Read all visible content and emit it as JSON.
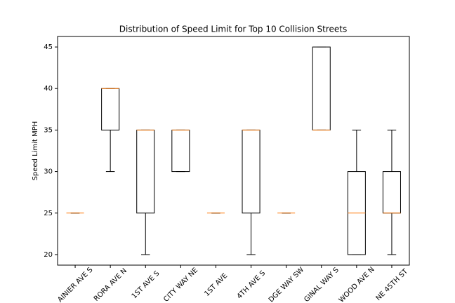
{
  "chart_data": {
    "type": "box",
    "title": "Distribution of Speed Limit for Top 10 Collision Streets",
    "ylabel": "Speed Limit MPH",
    "categories": [
      "AINIER AVE S",
      "RORA AVE N",
      "1ST AVE S",
      "CITY WAY NE",
      "1ST AVE",
      "4TH AVE S",
      "DGE WAY SW",
      "GINAL WAY S",
      "WOOD AVE N",
      "NE 45TH ST"
    ],
    "whislo": [
      25,
      30,
      20,
      30,
      25,
      20,
      25,
      35,
      20,
      20
    ],
    "q1": [
      25,
      35,
      25,
      30,
      25,
      25,
      25,
      35,
      20,
      25
    ],
    "med": [
      25,
      40,
      35,
      35,
      25,
      35,
      25,
      35,
      25,
      25
    ],
    "q3": [
      25,
      40,
      35,
      35,
      25,
      35,
      25,
      45,
      30,
      30
    ],
    "whishi": [
      25,
      40,
      35,
      35,
      25,
      35,
      25,
      45,
      35,
      35
    ],
    "color": "#000000",
    "median_color": "#ff7f0e",
    "ylim": [
      18.73,
      46.27
    ],
    "yticks": [
      20,
      25,
      30,
      35,
      40,
      45
    ]
  }
}
